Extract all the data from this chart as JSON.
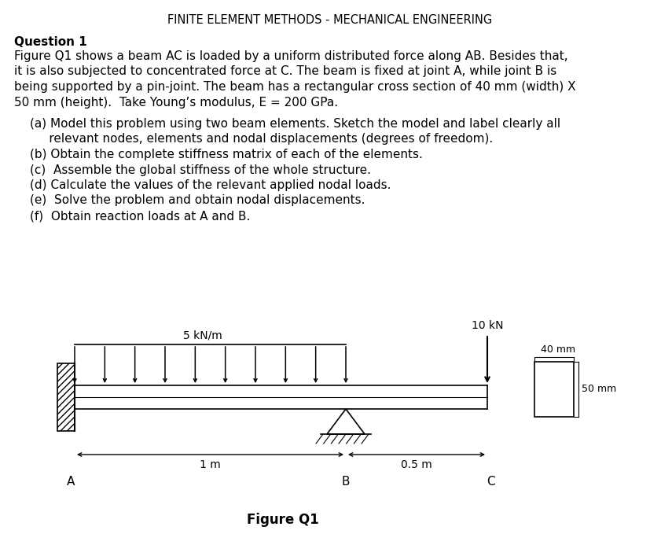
{
  "title": "FINITE ELEMENT METHODS - MECHANICAL ENGINEERING",
  "question_bold": "Question 1",
  "question_text_lines": [
    "Figure Q1 shows a beam AC is loaded by a uniform distributed force along AB. Besides that,",
    "it is also subjected to concentrated force at C. The beam is fixed at joint A, while joint B is",
    "being supported by a pin-joint. The beam has a rectangular cross section of 40 mm (width) X",
    "50 mm (height).  Take Young’s modulus, E = 200 GPa."
  ],
  "parts": [
    [
      "(a) Model this problem using two beam elements. Sketch the model and label clearly all",
      "     relevant nodes, elements and nodal displacements (degrees of freedom)."
    ],
    [
      "(b) Obtain the complete stiffness matrix of each of the elements."
    ],
    [
      "(c)  Assemble the global stiffness of the whole structure."
    ],
    [
      "(d) Calculate the values of the relevant applied nodal loads."
    ],
    [
      "(e)  Solve the problem and obtain nodal displacements."
    ],
    [
      "(f)  Obtain reaction loads at A and B."
    ]
  ],
  "figure_label": "Figure Q1",
  "dist_load_label": "5 kN/m",
  "point_load_label": "10 kN",
  "dim_AB": "1 m",
  "dim_BC": "0.5 m",
  "node_A": "A",
  "node_B": "B",
  "node_C": "C",
  "cs_label_width": "40 mm",
  "cs_label_height": "50 mm",
  "background_color": "#ffffff",
  "text_color": "#000000"
}
